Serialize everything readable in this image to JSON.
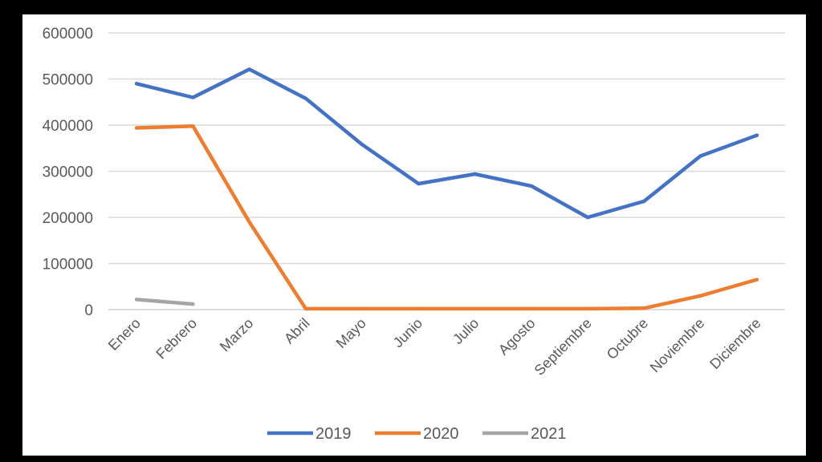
{
  "chart_data": {
    "type": "line",
    "categories": [
      "Enero",
      "Febrero",
      "Marzo",
      "Abril",
      "Mayo",
      "Junio",
      "Julio",
      "Agosto",
      "Septiembre",
      "Octubre",
      "Noviembre",
      "Diciembre"
    ],
    "series": [
      {
        "name": "2019",
        "color": "#4472c4",
        "values": [
          490000,
          460000,
          521000,
          458000,
          358000,
          273000,
          294000,
          268000,
          200000,
          235000,
          333000,
          378000
        ]
      },
      {
        "name": "2020",
        "color": "#ed7d31",
        "values": [
          394000,
          398000,
          190000,
          2000,
          2000,
          2000,
          2000,
          2000,
          2000,
          3000,
          30000,
          65000
        ]
      },
      {
        "name": "2021",
        "color": "#a5a5a5",
        "values": [
          22000,
          12000,
          null,
          null,
          null,
          null,
          null,
          null,
          null,
          null,
          null,
          null
        ]
      }
    ],
    "yticks": [
      "0",
      "100000",
      "200000",
      "300000",
      "400000",
      "500000",
      "600000"
    ],
    "ylim": [
      0,
      600000
    ],
    "title": "",
    "xlabel": "",
    "ylabel": "",
    "grid": true,
    "legend": "bottom"
  }
}
